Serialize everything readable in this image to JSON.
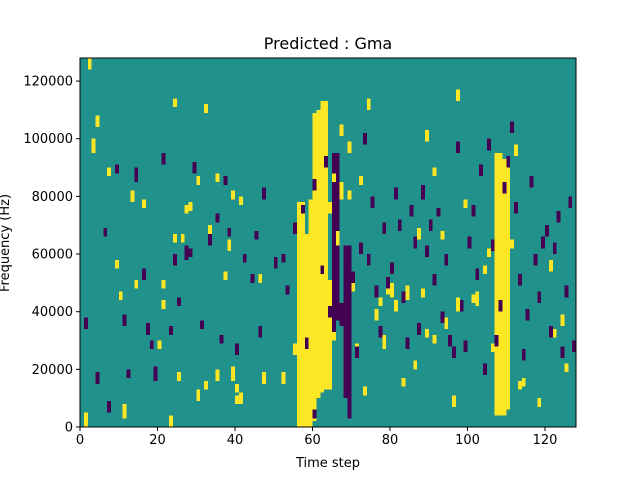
{
  "chart_data": {
    "type": "heatmap",
    "title": "Predicted : Gma",
    "xlabel": "Time step",
    "ylabel": "Frequency (Hz)",
    "xlim": [
      0,
      128
    ],
    "ylim": [
      0,
      128000
    ],
    "x_ticks": [
      0,
      20,
      40,
      60,
      80,
      100,
      120
    ],
    "y_ticks": [
      0,
      20000,
      40000,
      60000,
      80000,
      100000,
      120000
    ],
    "y_tick_labels": [
      "0",
      "20000",
      "40000",
      "60000",
      "80000",
      "100000",
      "120000"
    ],
    "n_time_steps": 128,
    "n_freq_bins": 128,
    "grid": false,
    "colormap": "viridis",
    "colors": {
      "background": "#21918c",
      "low": "#440154",
      "high": "#fde725"
    },
    "legend": "none",
    "cells": {
      "high": [
        [
          1,
          0,
          4
        ],
        [
          2,
          124,
          127
        ],
        [
          3,
          95,
          99
        ],
        [
          4,
          104,
          107
        ],
        [
          7,
          87,
          89
        ],
        [
          9,
          55,
          57
        ],
        [
          10,
          44,
          46
        ],
        [
          11,
          3,
          7
        ],
        [
          13,
          78,
          81
        ],
        [
          14,
          48,
          50
        ],
        [
          16,
          76,
          78
        ],
        [
          20,
          27,
          29
        ],
        [
          21,
          41,
          43
        ],
        [
          21,
          48,
          50
        ],
        [
          23,
          0,
          3
        ],
        [
          24,
          64,
          66
        ],
        [
          24,
          111,
          113
        ],
        [
          25,
          16,
          18
        ],
        [
          26,
          64,
          66
        ],
        [
          27,
          74,
          76
        ],
        [
          28,
          75,
          77
        ],
        [
          30,
          9,
          12
        ],
        [
          30,
          84,
          86
        ],
        [
          32,
          13,
          15
        ],
        [
          32,
          109,
          111
        ],
        [
          33,
          67,
          69
        ],
        [
          35,
          16,
          19
        ],
        [
          35,
          85,
          87
        ],
        [
          37,
          51,
          53
        ],
        [
          38,
          61,
          64
        ],
        [
          39,
          16,
          20
        ],
        [
          39,
          79,
          81
        ],
        [
          40,
          8,
          10
        ],
        [
          40,
          12,
          14
        ],
        [
          41,
          8,
          11
        ],
        [
          41,
          77,
          79
        ],
        [
          46,
          50,
          52
        ],
        [
          47,
          15,
          18
        ],
        [
          52,
          15,
          18
        ],
        [
          55,
          25,
          28
        ],
        [
          59,
          36,
          38
        ],
        [
          59,
          69,
          72
        ],
        [
          62,
          36,
          38
        ],
        [
          63,
          78,
          80
        ],
        [
          64,
          74,
          77
        ],
        [
          65,
          85,
          87
        ],
        [
          66,
          63,
          67
        ],
        [
          67,
          79,
          84
        ],
        [
          67,
          101,
          104
        ],
        [
          69,
          79,
          81
        ],
        [
          69,
          95,
          98
        ],
        [
          70,
          47,
          50
        ],
        [
          71,
          26,
          28
        ],
        [
          72,
          84,
          86
        ],
        [
          73,
          11,
          13
        ],
        [
          74,
          110,
          113
        ],
        [
          76,
          37,
          40
        ],
        [
          77,
          42,
          44
        ],
        [
          78,
          27,
          31
        ],
        [
          79,
          46,
          48
        ],
        [
          80,
          45,
          49
        ],
        [
          81,
          40,
          43
        ],
        [
          83,
          14,
          16
        ],
        [
          84,
          44,
          48
        ],
        [
          86,
          20,
          22
        ],
        [
          87,
          65,
          68
        ],
        [
          88,
          45,
          47
        ],
        [
          89,
          31,
          33
        ],
        [
          89,
          99,
          102
        ],
        [
          91,
          87,
          89
        ],
        [
          91,
          29,
          31
        ],
        [
          93,
          65,
          67
        ],
        [
          94,
          34,
          37
        ],
        [
          96,
          7,
          10
        ],
        [
          97,
          40,
          44
        ],
        [
          97,
          113,
          116
        ],
        [
          99,
          76,
          78
        ],
        [
          101,
          43,
          45
        ],
        [
          102,
          42,
          46
        ],
        [
          104,
          53,
          55
        ],
        [
          105,
          59,
          61
        ],
        [
          106,
          26,
          28
        ],
        [
          107,
          14,
          17
        ],
        [
          108,
          59,
          61
        ],
        [
          110,
          73,
          76
        ],
        [
          111,
          62,
          64
        ],
        [
          112,
          94,
          97
        ],
        [
          113,
          13,
          15
        ],
        [
          114,
          14,
          16
        ],
        [
          118,
          7,
          9
        ],
        [
          121,
          54,
          57
        ],
        [
          122,
          31,
          33
        ],
        [
          124,
          35,
          38
        ],
        [
          125,
          19,
          21
        ]
      ],
      "low": [
        [
          1,
          34,
          37
        ],
        [
          4,
          15,
          18
        ],
        [
          6,
          66,
          68
        ],
        [
          7,
          5,
          8
        ],
        [
          9,
          88,
          90
        ],
        [
          11,
          35,
          38
        ],
        [
          12,
          17,
          19
        ],
        [
          14,
          85,
          89
        ],
        [
          16,
          51,
          54
        ],
        [
          17,
          32,
          35
        ],
        [
          18,
          27,
          29
        ],
        [
          19,
          16,
          20
        ],
        [
          21,
          91,
          94
        ],
        [
          23,
          32,
          34
        ],
        [
          24,
          56,
          59
        ],
        [
          25,
          42,
          44
        ],
        [
          27,
          58,
          62
        ],
        [
          28,
          59,
          61
        ],
        [
          29,
          88,
          91
        ],
        [
          31,
          34,
          36
        ],
        [
          33,
          63,
          66
        ],
        [
          35,
          71,
          73
        ],
        [
          36,
          29,
          31
        ],
        [
          37,
          84,
          86
        ],
        [
          38,
          66,
          68
        ],
        [
          40,
          25,
          28
        ],
        [
          42,
          57,
          59
        ],
        [
          44,
          50,
          52
        ],
        [
          45,
          65,
          67
        ],
        [
          46,
          31,
          34
        ],
        [
          47,
          79,
          82
        ],
        [
          50,
          55,
          58
        ],
        [
          52,
          57,
          59
        ],
        [
          53,
          46,
          48
        ],
        [
          55,
          67,
          70
        ],
        [
          57,
          74,
          76
        ],
        [
          58,
          27,
          30
        ],
        [
          60,
          3,
          5
        ],
        [
          60,
          82,
          85
        ],
        [
          62,
          53,
          55
        ],
        [
          63,
          90,
          93
        ],
        [
          64,
          38,
          41
        ],
        [
          65,
          33,
          36
        ],
        [
          66,
          78,
          80
        ],
        [
          67,
          35,
          40
        ],
        [
          68,
          55,
          58
        ],
        [
          69,
          14,
          19
        ],
        [
          70,
          50,
          53
        ],
        [
          71,
          24,
          27
        ],
        [
          72,
          60,
          63
        ],
        [
          73,
          98,
          101
        ],
        [
          74,
          56,
          59
        ],
        [
          75,
          76,
          79
        ],
        [
          76,
          45,
          48
        ],
        [
          77,
          31,
          34
        ],
        [
          78,
          67,
          70
        ],
        [
          79,
          48,
          51
        ],
        [
          80,
          53,
          56
        ],
        [
          81,
          79,
          82
        ],
        [
          82,
          68,
          71
        ],
        [
          83,
          43,
          46
        ],
        [
          84,
          27,
          30
        ],
        [
          85,
          73,
          76
        ],
        [
          86,
          62,
          65
        ],
        [
          87,
          32,
          35
        ],
        [
          88,
          79,
          83
        ],
        [
          89,
          59,
          62
        ],
        [
          90,
          68,
          71
        ],
        [
          91,
          49,
          52
        ],
        [
          92,
          73,
          75
        ],
        [
          93,
          36,
          39
        ],
        [
          94,
          56,
          59
        ],
        [
          95,
          28,
          31
        ],
        [
          96,
          24,
          27
        ],
        [
          97,
          95,
          98
        ],
        [
          98,
          40,
          43
        ],
        [
          99,
          26,
          29
        ],
        [
          100,
          62,
          65
        ],
        [
          101,
          73,
          76
        ],
        [
          102,
          51,
          54
        ],
        [
          103,
          87,
          90
        ],
        [
          104,
          18,
          21
        ],
        [
          105,
          96,
          99
        ],
        [
          106,
          61,
          64
        ],
        [
          107,
          28,
          31
        ],
        [
          108,
          40,
          43
        ],
        [
          109,
          81,
          84
        ],
        [
          110,
          90,
          93
        ],
        [
          111,
          102,
          105
        ],
        [
          112,
          74,
          77
        ],
        [
          113,
          49,
          52
        ],
        [
          114,
          23,
          26
        ],
        [
          115,
          37,
          40
        ],
        [
          116,
          83,
          86
        ],
        [
          117,
          56,
          59
        ],
        [
          118,
          43,
          46
        ],
        [
          119,
          62,
          65
        ],
        [
          120,
          66,
          69
        ],
        [
          121,
          31,
          34
        ],
        [
          122,
          60,
          63
        ],
        [
          123,
          71,
          74
        ],
        [
          124,
          24,
          27
        ],
        [
          125,
          45,
          48
        ],
        [
          126,
          76,
          79
        ],
        [
          127,
          26,
          29
        ]
      ],
      "high_bands": [
        [
          56,
          58,
          0,
          77
        ],
        [
          58,
          60,
          0,
          66
        ],
        [
          59,
          61,
          2,
          78
        ],
        [
          60,
          62,
          10,
          108
        ],
        [
          61,
          63,
          12,
          109
        ],
        [
          62,
          64,
          16,
          112
        ],
        [
          63,
          65,
          13,
          50
        ],
        [
          64,
          66,
          30,
          38
        ],
        [
          107,
          109,
          4,
          94
        ],
        [
          108,
          110,
          4,
          86
        ],
        [
          109,
          111,
          6,
          92
        ],
        [
          110,
          111,
          10,
          89
        ]
      ],
      "low_bands": [
        [
          65,
          67,
          37,
          94
        ],
        [
          67,
          69,
          39,
          42
        ],
        [
          68,
          70,
          10,
          62
        ],
        [
          69,
          70,
          3,
          62
        ]
      ]
    }
  }
}
